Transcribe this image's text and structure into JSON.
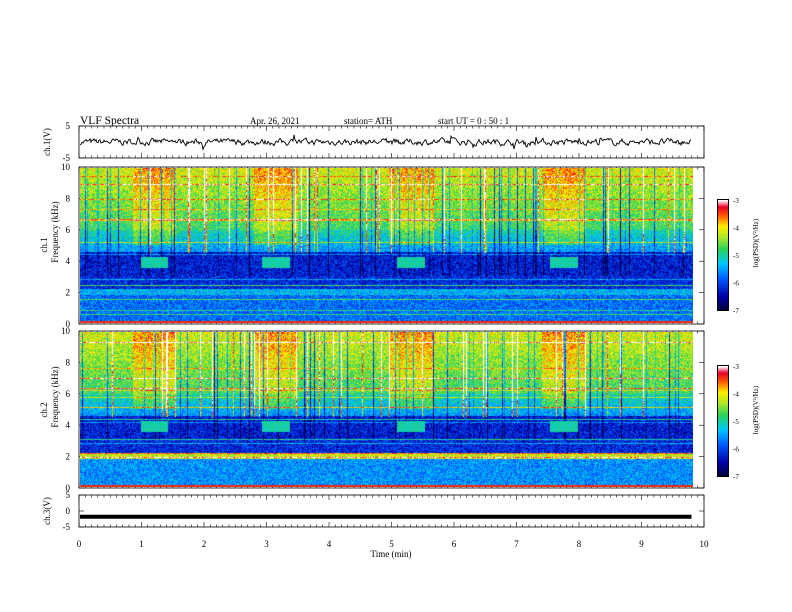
{
  "header": {
    "title": "VLF  Spectra",
    "date": "Apr. 26, 2021",
    "station": "station= ATH",
    "start": "start  UT  =     0  : 50 : 1"
  },
  "chart_data": [
    {
      "type": "line",
      "name": "ch1-waveform",
      "ylabel": "ch.1(V)",
      "ylim": [
        -5,
        5
      ],
      "yticks": [
        "5",
        "-5"
      ],
      "xlim": [
        0,
        10
      ],
      "data_extent_min": 9.8
    },
    {
      "type": "heatmap",
      "name": "ch1-spectrogram",
      "ylabel_line1": "ch.1",
      "ylabel_line2": "Frequency  (kHz)",
      "ylim": [
        0,
        10
      ],
      "yticks": [
        "0",
        "2",
        "4",
        "6",
        "8",
        "10"
      ],
      "xlim": [
        0,
        10
      ],
      "color_scale_label": "log(PSD)(V²/Hz)",
      "color_range": [
        -7,
        -3
      ],
      "color_ticks": [
        "-3",
        "-4",
        "-5",
        "-6",
        "-7"
      ],
      "burst_times_min": [
        1.2,
        3.15,
        5.3,
        7.75
      ],
      "burst_freq_khz": 3.9
    },
    {
      "type": "heatmap",
      "name": "ch2-spectrogram",
      "ylabel_line1": "ch.2",
      "ylabel_line2": "Frequency  (kHz)",
      "ylim": [
        0,
        10
      ],
      "yticks": [
        "0",
        "2",
        "4",
        "6",
        "8",
        "10"
      ],
      "xlim": [
        0,
        10
      ],
      "color_scale_label": "log(PSD)(V²/Hz)",
      "color_range": [
        -7,
        -3
      ],
      "color_ticks": [
        "-3",
        "-4",
        "-5",
        "-6",
        "-7"
      ],
      "burst_times_min": [
        1.2,
        3.15,
        5.3,
        7.75
      ],
      "burst_freq_khz": 3.9
    },
    {
      "type": "line",
      "name": "ch3-waveform",
      "ylabel": "ch.3(V)",
      "ylim": [
        -5,
        5
      ],
      "yticks": [
        "5",
        "0",
        "-5"
      ],
      "xlim": [
        0,
        10
      ],
      "level_v": -1.8
    }
  ],
  "xaxis": {
    "label": "Time  (min)",
    "ticks": [
      "0",
      "1",
      "2",
      "3",
      "4",
      "5",
      "6",
      "7",
      "8",
      "9",
      "10"
    ]
  },
  "colors": {
    "low": "#000066",
    "mid": "#1f9a1f",
    "high": "#ffffff"
  }
}
